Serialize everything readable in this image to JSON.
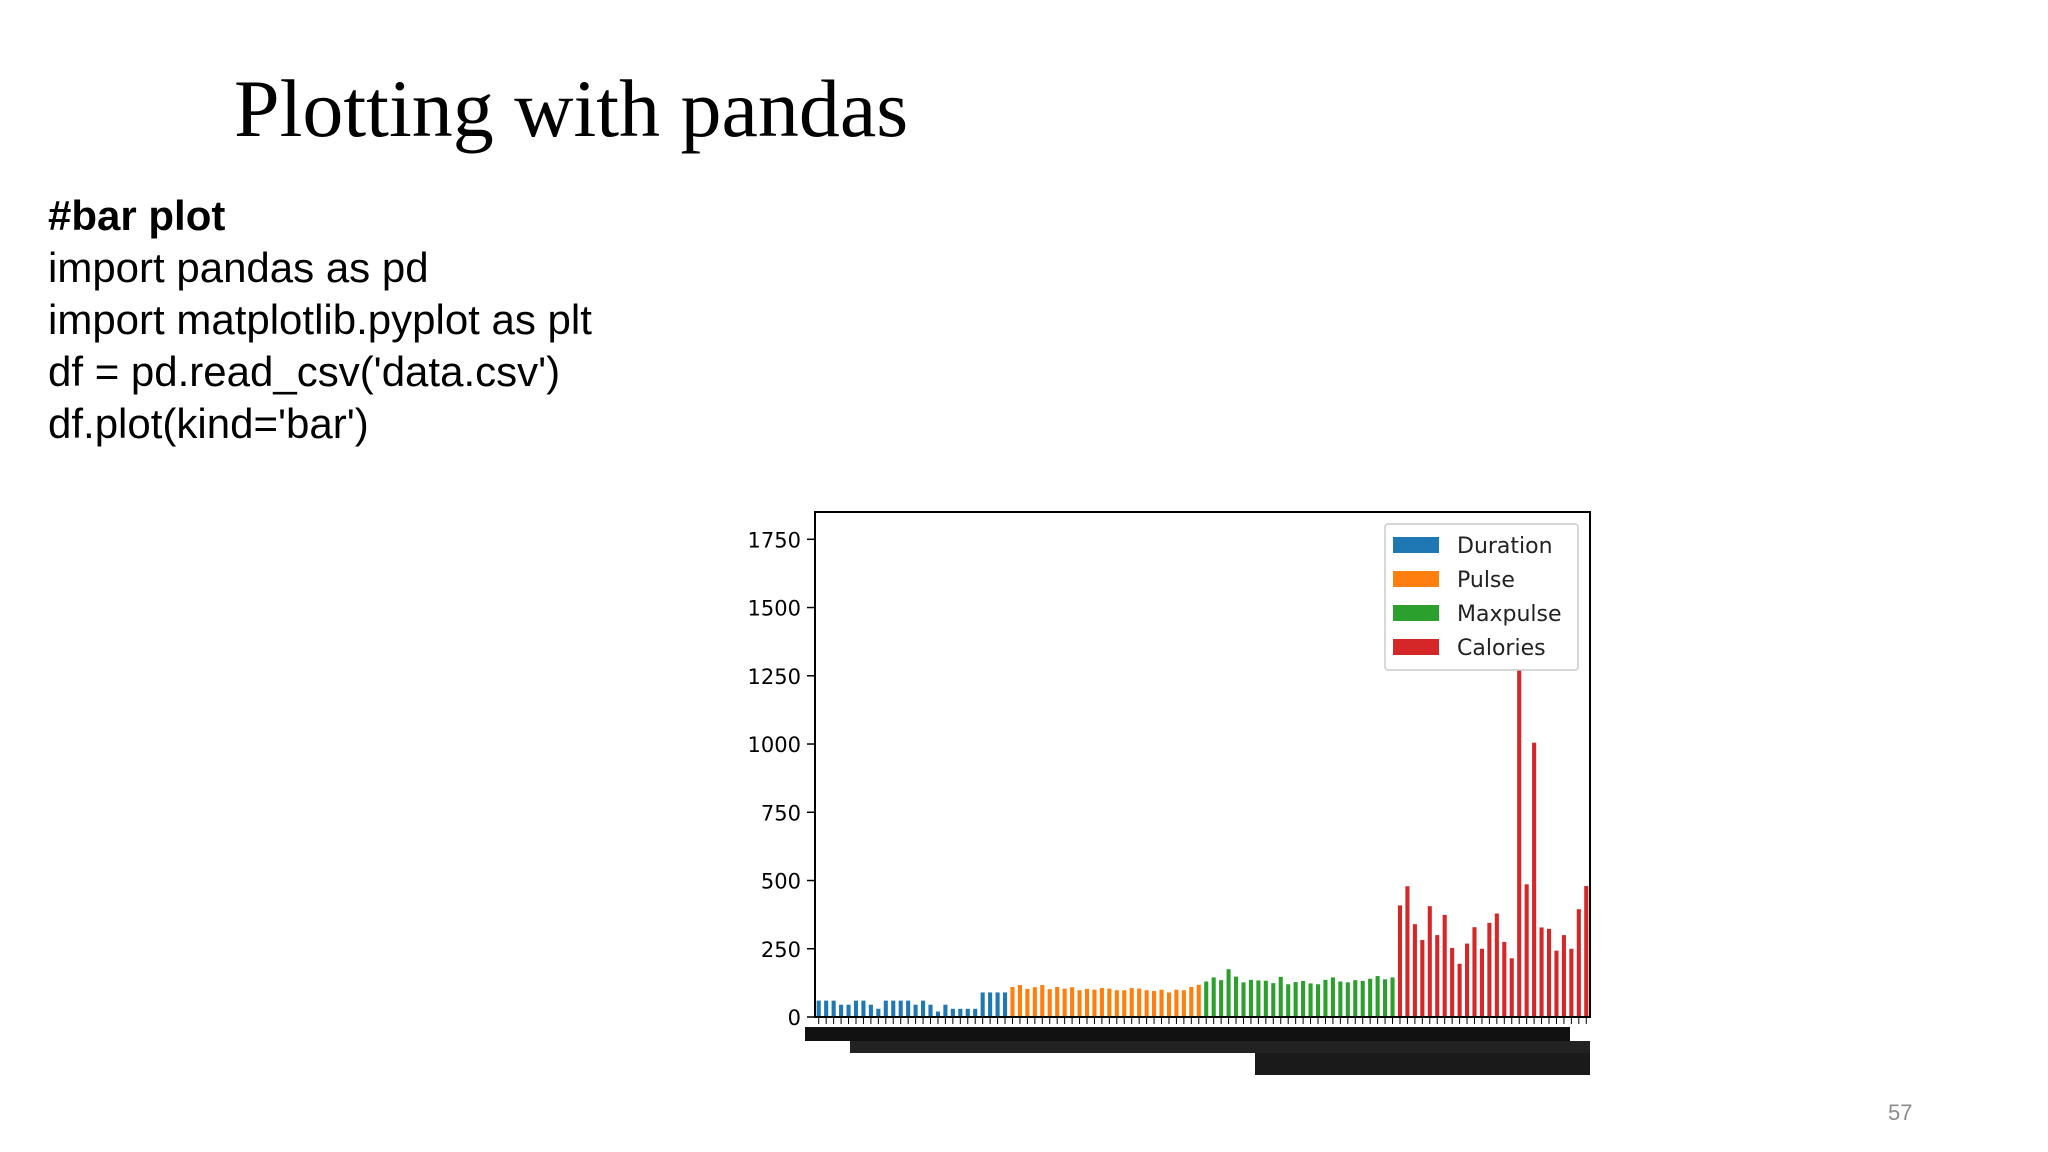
{
  "slide": {
    "title": "Plotting with pandas",
    "page_number": "57"
  },
  "code": {
    "comment": "#bar plot",
    "lines": [
      "import pandas as pd",
      "import matplotlib.pyplot as plt",
      "df = pd.read_csv('data.csv')",
      "df.plot(kind='bar')"
    ]
  },
  "colors": {
    "Duration": "#1f77b4",
    "Pulse": "#ff7f0e",
    "Maxpulse": "#2ca02c",
    "Calories": "#d62728"
  },
  "chart_data": {
    "type": "bar",
    "ylim": [
      0,
      1750
    ],
    "yticks": [
      0,
      250,
      500,
      750,
      1000,
      1250,
      1500,
      1750
    ],
    "legend_position": "top-right",
    "grid": false,
    "xlabel": "",
    "ylabel": "",
    "x_tick_labels_note": "overlapping row index labels",
    "series": [
      {
        "name": "Duration",
        "values": [
          60,
          60,
          60,
          45,
          45,
          60,
          60,
          45,
          30,
          60,
          60,
          60,
          60,
          45,
          60,
          45,
          20,
          45,
          30,
          30,
          30,
          30,
          90,
          90,
          90,
          90
        ]
      },
      {
        "name": "Pulse",
        "values": [
          110,
          117,
          103,
          109,
          117,
          102,
          110,
          104,
          109,
          98,
          103,
          100,
          106,
          104,
          98,
          98,
          106,
          104,
          98,
          95,
          100,
          90,
          100,
          98,
          110,
          118
        ]
      },
      {
        "name": "Maxpulse",
        "values": [
          130,
          145,
          135,
          175,
          148,
          127,
          136,
          134,
          133,
          124,
          147,
          120,
          128,
          132,
          123,
          120,
          136,
          145,
          130,
          127,
          135,
          132,
          140,
          150,
          138,
          145
        ]
      },
      {
        "name": "Calories",
        "values": [
          409,
          479,
          340,
          282,
          406,
          300,
          374,
          253,
          195,
          269,
          329,
          250,
          345,
          379,
          275,
          215,
          1738,
          486,
          1005,
          328,
          323,
          243,
          300,
          250,
          395,
          480
        ]
      }
    ]
  }
}
